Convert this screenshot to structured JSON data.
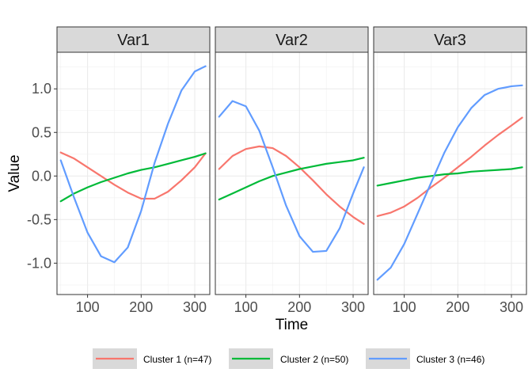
{
  "chart_data": {
    "type": "line",
    "xlabel": "Time",
    "ylabel": "Value",
    "xlim": [
      43,
      328
    ],
    "ylim": [
      -1.36,
      1.42
    ],
    "x_ticks": [
      100,
      200,
      300
    ],
    "y_ticks": [
      1.0,
      0.5,
      0.0,
      -0.5,
      -1.0
    ],
    "x_tick_labels": [
      "100",
      "200",
      "300"
    ],
    "y_tick_labels": [
      "1.0",
      "0.5",
      "0.0",
      "-0.5",
      "-1.0"
    ],
    "grid": true,
    "legend_position": "bottom",
    "legend": [
      {
        "name": "Cluster 1 (n=47)",
        "color": "#F8766D"
      },
      {
        "name": "Cluster 2 (n=50)",
        "color": "#00BA38"
      },
      {
        "name": "Cluster 3 (n=46)",
        "color": "#619CFF"
      }
    ],
    "x": [
      50,
      75,
      100,
      125,
      150,
      175,
      200,
      225,
      250,
      275,
      300,
      320
    ],
    "panels": [
      {
        "title": "Var1",
        "series": [
          {
            "name": "Cluster 1 (n=47)",
            "color": "#F8766D",
            "values": [
              0.27,
              0.2,
              0.1,
              0.0,
              -0.1,
              -0.19,
              -0.26,
              -0.26,
              -0.18,
              -0.05,
              0.1,
              0.26
            ]
          },
          {
            "name": "Cluster 2 (n=50)",
            "color": "#00BA38",
            "values": [
              -0.29,
              -0.2,
              -0.13,
              -0.07,
              -0.02,
              0.03,
              0.07,
              0.1,
              0.14,
              0.18,
              0.22,
              0.26
            ]
          },
          {
            "name": "Cluster 3 (n=46)",
            "color": "#619CFF",
            "values": [
              0.18,
              -0.25,
              -0.65,
              -0.92,
              -0.99,
              -0.82,
              -0.4,
              0.15,
              0.6,
              0.98,
              1.2,
              1.26
            ]
          }
        ]
      },
      {
        "title": "Var2",
        "series": [
          {
            "name": "Cluster 1 (n=47)",
            "color": "#F8766D",
            "values": [
              0.08,
              0.23,
              0.31,
              0.34,
              0.32,
              0.23,
              0.1,
              -0.05,
              -0.21,
              -0.35,
              -0.47,
              -0.55
            ]
          },
          {
            "name": "Cluster 2 (n=50)",
            "color": "#00BA38",
            "values": [
              -0.27,
              -0.2,
              -0.13,
              -0.06,
              0.0,
              0.04,
              0.08,
              0.11,
              0.14,
              0.16,
              0.18,
              0.21
            ]
          },
          {
            "name": "Cluster 3 (n=46)",
            "color": "#619CFF",
            "values": [
              0.68,
              0.86,
              0.8,
              0.52,
              0.1,
              -0.34,
              -0.69,
              -0.87,
              -0.86,
              -0.6,
              -0.2,
              0.1
            ]
          }
        ]
      },
      {
        "title": "Var3",
        "series": [
          {
            "name": "Cluster 1 (n=47)",
            "color": "#F8766D",
            "values": [
              -0.46,
              -0.42,
              -0.35,
              -0.25,
              -0.13,
              -0.02,
              0.1,
              0.22,
              0.35,
              0.47,
              0.58,
              0.67
            ]
          },
          {
            "name": "Cluster 2 (n=50)",
            "color": "#00BA38",
            "values": [
              -0.11,
              -0.08,
              -0.05,
              -0.02,
              0.0,
              0.02,
              0.03,
              0.05,
              0.06,
              0.07,
              0.08,
              0.1
            ]
          },
          {
            "name": "Cluster 3 (n=46)",
            "color": "#619CFF",
            "values": [
              -1.19,
              -1.05,
              -0.78,
              -0.43,
              -0.08,
              0.27,
              0.56,
              0.78,
              0.93,
              1.0,
              1.03,
              1.04
            ]
          }
        ]
      }
    ]
  }
}
